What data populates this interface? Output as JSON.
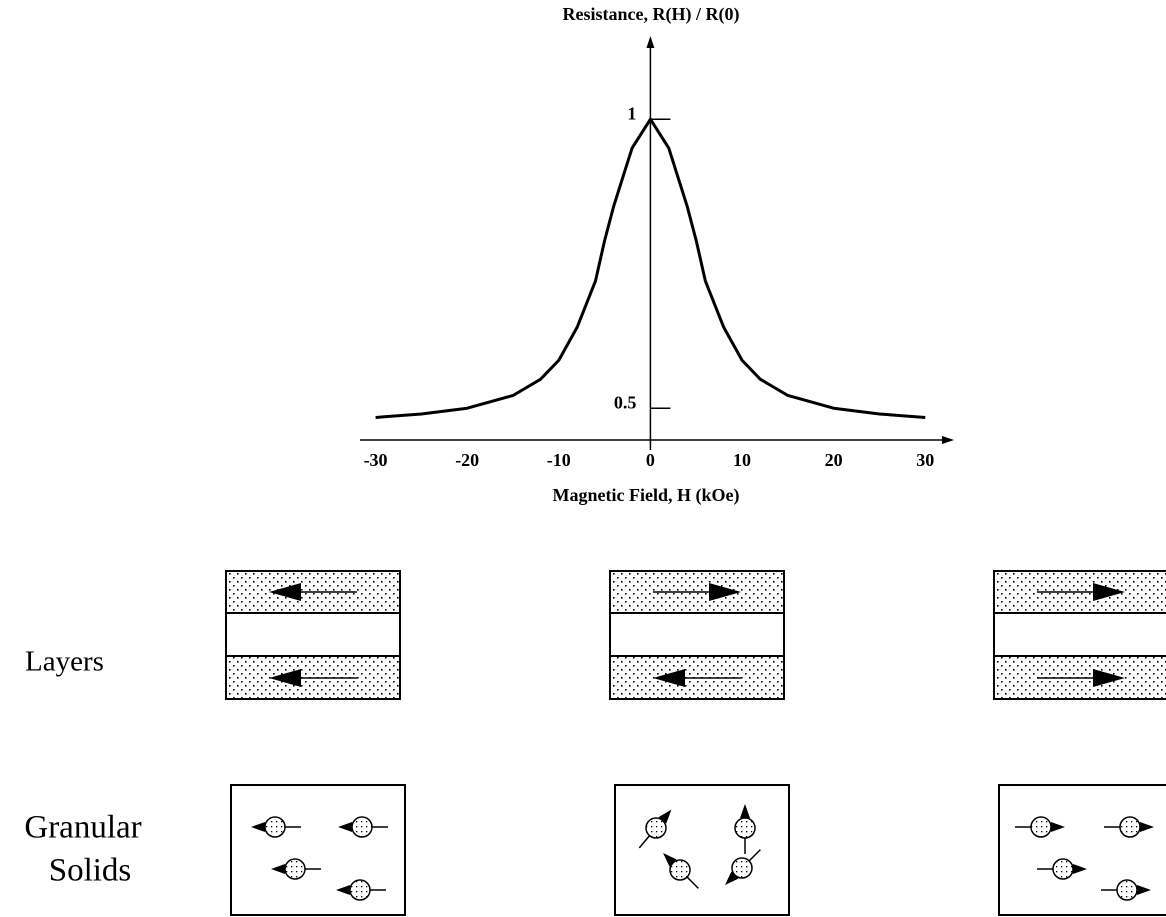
{
  "chart_data": {
    "type": "line",
    "title": "Resistance, R(H) / R(0)",
    "x_label": "Magnetic Field, H (kOe)",
    "x": [
      -30,
      -25,
      -20,
      -15,
      -12,
      -10,
      -8,
      -6,
      -5,
      -4,
      -2,
      0,
      2,
      4,
      5,
      6,
      8,
      10,
      12,
      15,
      20,
      25,
      30
    ],
    "values": [
      0.484,
      0.49,
      0.5,
      0.522,
      0.55,
      0.583,
      0.64,
      0.72,
      0.79,
      0.85,
      0.95,
      1.0,
      0.95,
      0.85,
      0.79,
      0.72,
      0.64,
      0.583,
      0.55,
      0.522,
      0.5,
      0.49,
      0.484
    ],
    "color": "#000000",
    "xlim": [
      -31.7,
      32.7
    ],
    "ylim": [
      0.445,
      1.137
    ],
    "xticks": [
      -30,
      -20,
      -10,
      0,
      10,
      20,
      30
    ],
    "yticks": [
      0.5,
      1
    ]
  },
  "diagram": {
    "layers_label": "Layers",
    "granular_label": [
      "Granular",
      "Solids"
    ]
  }
}
